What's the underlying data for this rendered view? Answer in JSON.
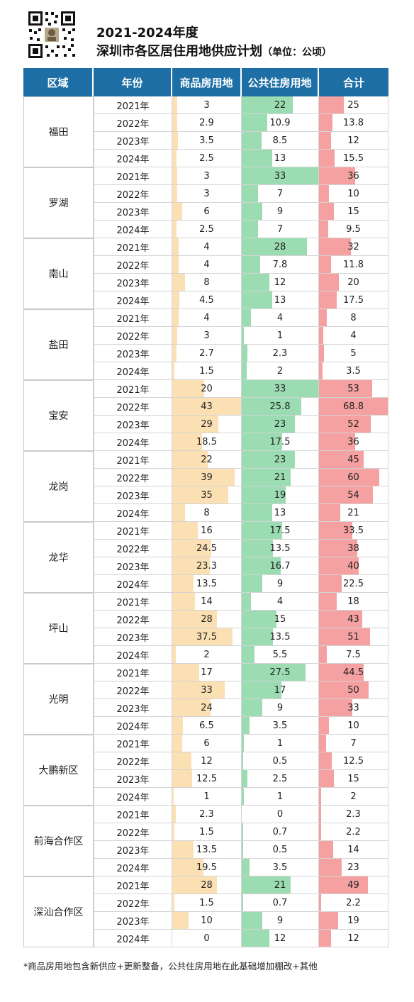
{
  "header": {
    "title_line1": "2021-2024年度",
    "title_line2": "深圳市各区居住用地供应计划",
    "unit": "（单位：公顷）"
  },
  "colors": {
    "header_bg": "#1d6fa5",
    "commercial_bar": "#fbe0b4",
    "public_bar": "#9bdcb3",
    "total_bar": "#f6a1a1"
  },
  "footnote": "*商品房用地包含新供应+更新整备，公共住房用地在此基础增加棚改+其他",
  "chart_data": {
    "type": "table",
    "title": "2021-2024年度 深圳市各区居住用地供应计划（单位：公顷）",
    "columns": [
      "区域",
      "年份",
      "商品房用地",
      "公共住房用地",
      "合计"
    ],
    "years": [
      "2021年",
      "2022年",
      "2023年",
      "2024年"
    ],
    "scale_max": {
      "commercial": 43,
      "public": 33,
      "total": 68.8
    },
    "districts": [
      {
        "name": "福田",
        "commercial": [
          3,
          2.9,
          3.5,
          2.5
        ],
        "public": [
          22,
          10.9,
          8.5,
          13
        ],
        "total": [
          25,
          13.8,
          12,
          15.5
        ]
      },
      {
        "name": "罗湖",
        "commercial": [
          3,
          3,
          6,
          2.5
        ],
        "public": [
          33,
          7,
          9,
          7
        ],
        "total": [
          36,
          10,
          15,
          9.5
        ]
      },
      {
        "name": "南山",
        "commercial": [
          4,
          4,
          8,
          4.5
        ],
        "public": [
          28,
          7.8,
          12,
          13
        ],
        "total": [
          32,
          11.8,
          20,
          17.5
        ]
      },
      {
        "name": "盐田",
        "commercial": [
          4,
          3,
          2.7,
          1.5
        ],
        "public": [
          4,
          1,
          2.3,
          2
        ],
        "total": [
          8,
          4,
          5,
          3.5
        ]
      },
      {
        "name": "宝安",
        "commercial": [
          20,
          43,
          29,
          18.5
        ],
        "public": [
          33,
          25.8,
          23,
          17.5
        ],
        "total": [
          53,
          68.8,
          52,
          36
        ]
      },
      {
        "name": "龙岗",
        "commercial": [
          22,
          39,
          35,
          8
        ],
        "public": [
          23,
          21,
          19,
          13
        ],
        "total": [
          45,
          60,
          54,
          21
        ]
      },
      {
        "name": "龙华",
        "commercial": [
          16,
          24.5,
          23.3,
          13.5
        ],
        "public": [
          17.5,
          13.5,
          16.7,
          9
        ],
        "total": [
          33.5,
          38,
          40,
          22.5
        ]
      },
      {
        "name": "坪山",
        "commercial": [
          14,
          28,
          37.5,
          2
        ],
        "public": [
          4,
          15,
          13.5,
          5.5
        ],
        "total": [
          18,
          43,
          51,
          7.5
        ]
      },
      {
        "name": "光明",
        "commercial": [
          17,
          33,
          24,
          6.5
        ],
        "public": [
          27.5,
          17,
          9,
          3.5
        ],
        "total": [
          44.5,
          50,
          33,
          10
        ]
      },
      {
        "name": "大鹏新区",
        "commercial": [
          6,
          12,
          12.5,
          1
        ],
        "public": [
          1,
          0.5,
          2.5,
          1
        ],
        "total": [
          7,
          12.5,
          15,
          2
        ]
      },
      {
        "name": "前海合作区",
        "commercial": [
          2.3,
          1.5,
          13.5,
          19.5
        ],
        "public": [
          0,
          0.7,
          0.5,
          3.5
        ],
        "total": [
          2.3,
          2.2,
          14,
          23
        ]
      },
      {
        "name": "深汕合作区",
        "commercial": [
          28,
          1.5,
          10,
          0
        ],
        "public": [
          21,
          0.7,
          9,
          12
        ],
        "total": [
          49,
          2.2,
          19,
          12
        ]
      }
    ]
  }
}
